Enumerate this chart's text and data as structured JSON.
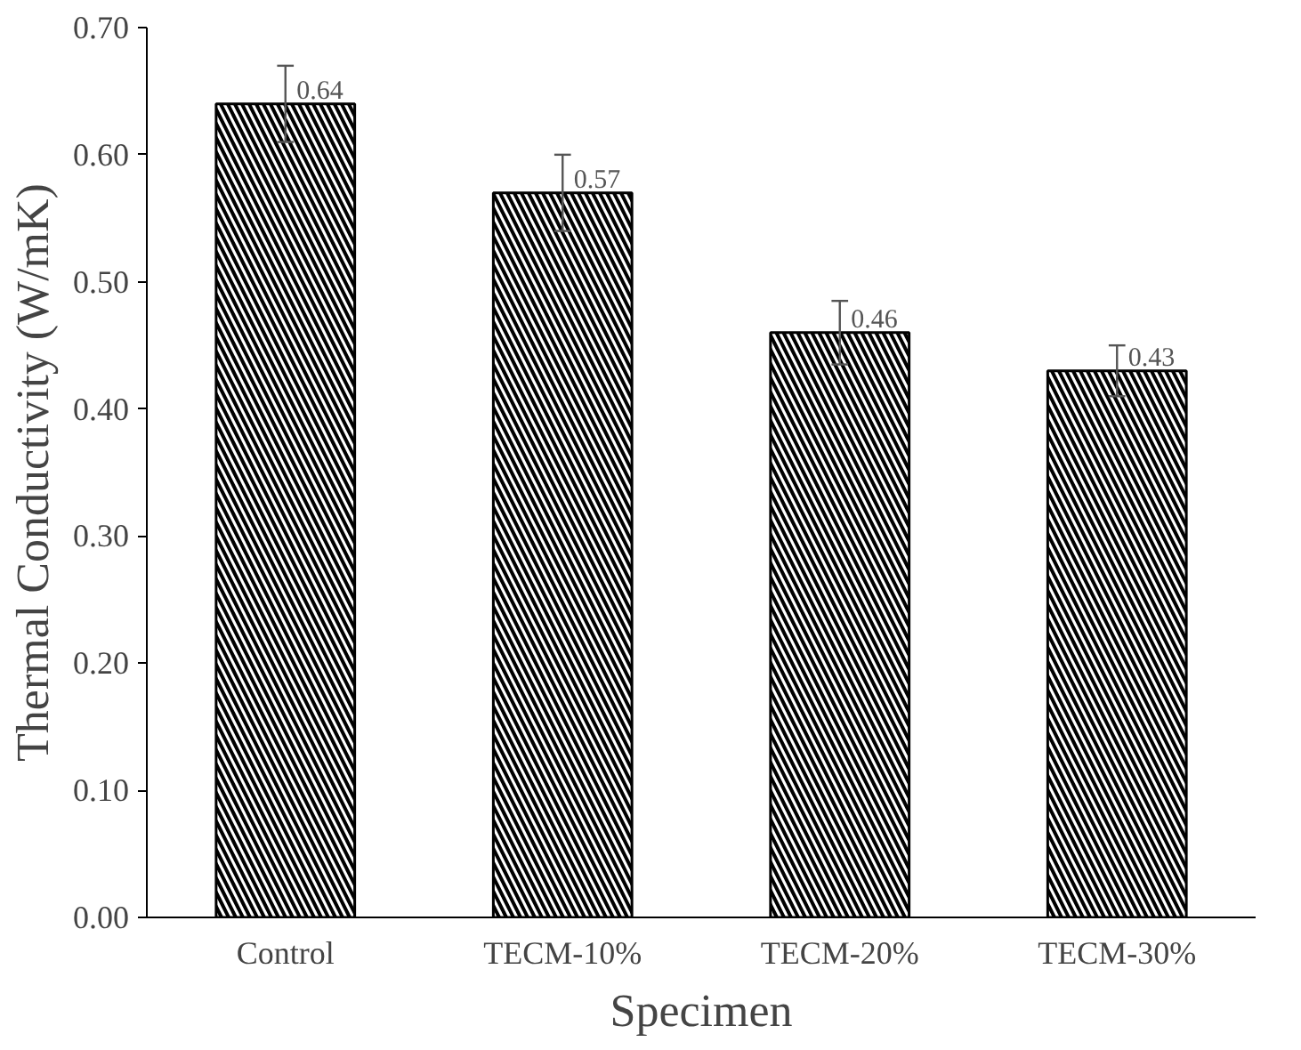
{
  "chart_data": {
    "type": "bar",
    "xlabel": "Specimen",
    "ylabel": "Thermal Conductivity (W/mK)",
    "categories": [
      "Control",
      "TECM-10%",
      "TECM-20%",
      "TECM-30%"
    ],
    "values": [
      0.64,
      0.57,
      0.46,
      0.43
    ],
    "errors": [
      0.03,
      0.03,
      0.025,
      0.02
    ],
    "color": "#ffffff",
    "data_labels": true,
    "ylim": [
      0,
      0.7
    ],
    "yticks": [
      {
        "value": 0,
        "label": "0.00"
      },
      {
        "value": 0.1,
        "label": "0.10"
      },
      {
        "value": 0.2,
        "label": "0.20"
      },
      {
        "value": 0.3,
        "label": "0.30"
      },
      {
        "value": 0.4,
        "label": "0.40"
      },
      {
        "value": 0.5,
        "label": "0.50"
      },
      {
        "value": 0.6,
        "label": "0.60"
      },
      {
        "value": 0.7,
        "label": "0.70"
      }
    ],
    "grid": false
  }
}
